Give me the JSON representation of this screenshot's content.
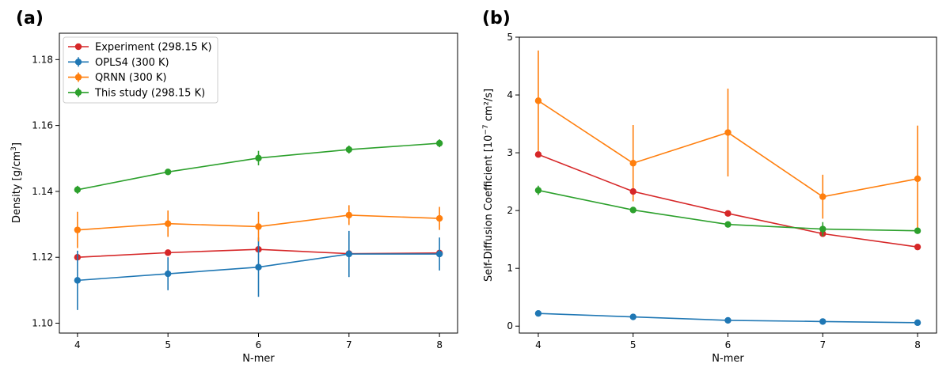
{
  "figure": {
    "colors": {
      "experiment": "#d62728",
      "opls4": "#1f77b4",
      "qrnn": "#ff7f0e",
      "this_study": "#2ca02c"
    }
  },
  "chart_data": [
    {
      "type": "line",
      "panel_label": "(a)",
      "xlabel": "N-mer",
      "ylabel": "Density [g/cm",
      "ylabel_sup": "3",
      "ylabel_end": "]",
      "x": [
        4,
        5,
        6,
        7,
        8
      ],
      "xlim": [
        3.8,
        8.2
      ],
      "ylim": [
        1.097,
        1.188
      ],
      "xticks": [
        "4",
        "5",
        "6",
        "7",
        "8"
      ],
      "yticks": [
        "1.10",
        "1.12",
        "1.14",
        "1.16",
        "1.18"
      ],
      "ytick_values": [
        1.1,
        1.12,
        1.14,
        1.16,
        1.18
      ],
      "legend_position": "upper-left",
      "series": [
        {
          "key": "experiment",
          "name": "Experiment (298.15 K)",
          "color": "#d62728",
          "values": [
            1.12,
            1.1214,
            1.1224,
            1.1211,
            1.1213
          ],
          "errors": null
        },
        {
          "key": "opls4",
          "name": "OPLS4 (300 K)",
          "color": "#1f77b4",
          "values": [
            1.113,
            1.115,
            1.117,
            1.121,
            1.121
          ],
          "errors": [
            0.009,
            0.005,
            0.009,
            0.007,
            0.005
          ]
        },
        {
          "key": "qrnn",
          "name": "QRNN (300 K)",
          "color": "#ff7f0e",
          "values": [
            1.1283,
            1.1302,
            1.1293,
            1.1328,
            1.1318
          ],
          "errors": [
            0.0055,
            0.004,
            0.0045,
            0.003,
            0.0035
          ]
        },
        {
          "key": "this_study",
          "name": "This study (298.15 K)",
          "color": "#2ca02c",
          "values": [
            1.1405,
            1.1459,
            1.1501,
            1.1527,
            1.1546
          ],
          "errors": [
            0.0012,
            0.0008,
            0.0022,
            0.0012,
            0.0012
          ]
        }
      ]
    },
    {
      "type": "line",
      "panel_label": "(b)",
      "xlabel": "N-mer",
      "ylabel": "Self-Diffusion Coefficient [10",
      "ylabel_sup": "−7",
      "ylabel_end": " cm²/s]",
      "x": [
        4,
        5,
        6,
        7,
        8
      ],
      "xlim": [
        3.8,
        8.2
      ],
      "ylim": [
        -0.12,
        5.0
      ],
      "xticks": [
        "4",
        "5",
        "6",
        "7",
        "8"
      ],
      "yticks": [
        "0",
        "1",
        "2",
        "3",
        "4",
        "5"
      ],
      "ytick_values": [
        0,
        1,
        2,
        3,
        4,
        5
      ],
      "legend_position": "none",
      "series": [
        {
          "key": "qrnn",
          "name": "QRNN (300 K)",
          "color": "#ff7f0e",
          "values": [
            3.9,
            2.82,
            3.35,
            2.24,
            2.55
          ],
          "errors": [
            0.87,
            0.66,
            0.76,
            0.38,
            0.92
          ]
        },
        {
          "key": "experiment",
          "name": "Experiment (298.15 K)",
          "color": "#d62728",
          "values": [
            2.97,
            2.33,
            1.95,
            1.6,
            1.37
          ],
          "errors": null
        },
        {
          "key": "this_study",
          "name": "This study (298.15 K)",
          "color": "#2ca02c",
          "values": [
            2.35,
            2.01,
            1.76,
            1.68,
            1.65
          ],
          "errors": [
            0.08,
            0.04,
            0.04,
            0.12,
            0.04
          ]
        },
        {
          "key": "opls4",
          "name": "OPLS4 (300 K)",
          "color": "#1f77b4",
          "values": [
            0.22,
            0.16,
            0.1,
            0.08,
            0.06
          ],
          "errors": [
            0.02,
            0.02,
            0.01,
            0.01,
            0.01
          ]
        }
      ]
    }
  ]
}
